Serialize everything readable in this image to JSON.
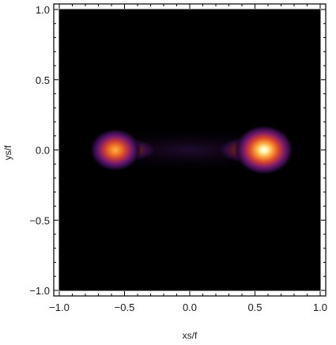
{
  "chart_data": {
    "type": "heatmap",
    "title": "",
    "xlabel": "xs/f",
    "ylabel": "ys/f",
    "xlim": [
      -1.0,
      1.0
    ],
    "ylim": [
      -1.0,
      1.0
    ],
    "grid": false,
    "colormap": "inferno-like",
    "background_color": "#000000",
    "x_ticks": [
      {
        "value": -1.0,
        "label": "−1.0"
      },
      {
        "value": -0.5,
        "label": "−0.5"
      },
      {
        "value": 0.0,
        "label": "0.0"
      },
      {
        "value": 0.5,
        "label": "0.5"
      },
      {
        "value": 1.0,
        "label": "1.0"
      }
    ],
    "y_ticks": [
      {
        "value": 1.0,
        "label": "1.0"
      },
      {
        "value": 0.5,
        "label": "0.5"
      },
      {
        "value": 0.0,
        "label": "0.0"
      },
      {
        "value": -0.5,
        "label": "−0.5"
      },
      {
        "value": -1.0,
        "label": "−1.0"
      }
    ],
    "hotspots": [
      {
        "x": -0.57,
        "y": 0.0,
        "intensity": 0.72
      },
      {
        "x": 0.57,
        "y": 0.0,
        "intensity": 1.0
      }
    ]
  }
}
